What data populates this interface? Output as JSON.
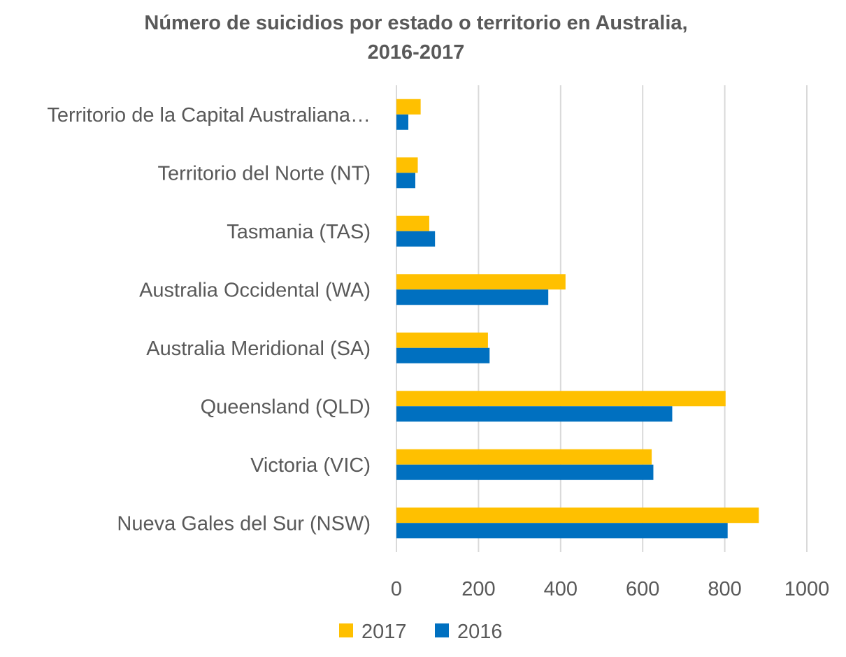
{
  "chart_data": {
    "type": "bar",
    "orientation": "horizontal",
    "title_line1": "Número de suicidios por estado o territorio en Australia,",
    "title_line2": "2016-2017",
    "categories": [
      "Territorio de la Capital Australiana…",
      "Territorio del Norte (NT)",
      "Tasmania (TAS)",
      "Australia Occidental (WA)",
      "Australia Meridional (SA)",
      "Queensland (QLD)",
      "Victoria (VIC)",
      "Nueva Gales del Sur (NSW)"
    ],
    "series": [
      {
        "name": "2017",
        "color": "#FFC000",
        "values": [
          59,
          52,
          80,
          412,
          223,
          802,
          622,
          883
        ]
      },
      {
        "name": "2016",
        "color": "#0070C0",
        "values": [
          29,
          46,
          94,
          370,
          227,
          672,
          626,
          807
        ]
      }
    ],
    "xlim": [
      0,
      1000
    ],
    "xticks": [
      "0",
      "200",
      "400",
      "600",
      "800",
      "1000"
    ],
    "grid": true,
    "legend": "bottom"
  }
}
